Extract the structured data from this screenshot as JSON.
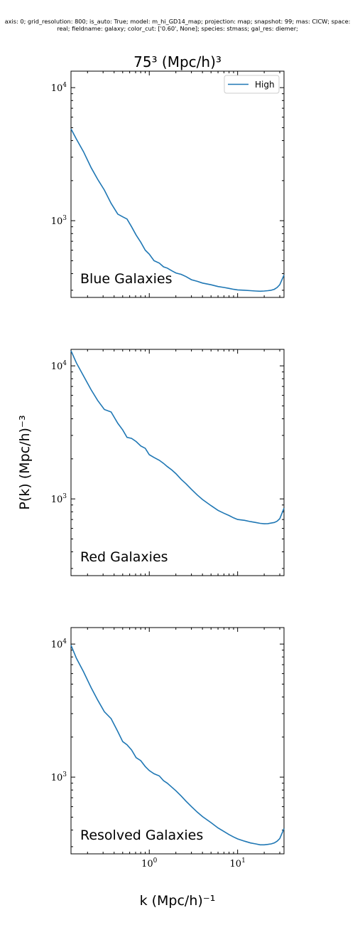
{
  "figure": {
    "header_line1": "axis: 0; grid_resolution: 800; is_auto: True; model: m_hi_GD14_map; projection: map; snapshot: 99; mas: CICW; space:",
    "header_line2": "real; fieldname: galaxy; color_cut: ['0.60', None]; species: stmass; gal_res: diemer;",
    "title": "75³ (Mpc/h)³",
    "ylabel": "P(k) (Mpc/h)⁻³",
    "xlabel": "k (Mpc/h)⁻¹",
    "legend": "High",
    "line_color": "#1f77b4"
  },
  "chart_data": [
    {
      "type": "line",
      "panel_label": "Blue Galaxies",
      "xscale": "log",
      "yscale": "log",
      "xlim": [
        0.13,
        33.5
      ],
      "ylim": [
        265,
        13300
      ],
      "ytick_labels": [
        "10^4",
        "10^3"
      ],
      "xtick_labels": [],
      "legend": "top-right",
      "series": [
        {
          "name": "High",
          "x": [
            0.13,
            0.15,
            0.18,
            0.22,
            0.26,
            0.31,
            0.37,
            0.44,
            0.5,
            0.56,
            0.63,
            0.71,
            0.8,
            0.9,
            1.0,
            1.13,
            1.3,
            1.45,
            1.6,
            1.8,
            2.0,
            2.3,
            2.6,
            3.0,
            3.5,
            4.0,
            5.0,
            6.0,
            7.0,
            8.0,
            9.0,
            10.0,
            12.0,
            14.0,
            16.0,
            18.0,
            20.0,
            22.0,
            24.0,
            26.0,
            28.0,
            30.0,
            33.5
          ],
          "y": [
            4900,
            4100,
            3300,
            2500,
            2050,
            1700,
            1350,
            1120,
            1070,
            1030,
            900,
            780,
            690,
            600,
            560,
            500,
            480,
            450,
            440,
            420,
            405,
            395,
            380,
            360,
            350,
            340,
            330,
            320,
            315,
            310,
            305,
            302,
            300,
            298,
            296,
            295,
            296,
            298,
            300,
            305,
            315,
            330,
            390
          ]
        }
      ]
    },
    {
      "type": "line",
      "panel_label": "Red Galaxies",
      "xscale": "log",
      "yscale": "log",
      "xlim": [
        0.13,
        33.5
      ],
      "ylim": [
        265,
        13300
      ],
      "ytick_labels": [
        "10^4",
        "10^3"
      ],
      "xtick_labels": [],
      "series": [
        {
          "x": [
            0.13,
            0.15,
            0.18,
            0.22,
            0.26,
            0.31,
            0.37,
            0.44,
            0.5,
            0.56,
            0.63,
            0.71,
            0.8,
            0.9,
            1.0,
            1.13,
            1.3,
            1.45,
            1.6,
            1.8,
            2.0,
            2.3,
            2.6,
            3.0,
            3.5,
            4.0,
            5.0,
            6.0,
            7.0,
            8.0,
            9.0,
            10.0,
            12.0,
            14.0,
            16.0,
            18.0,
            20.0,
            22.0,
            24.0,
            26.0,
            28.0,
            30.0,
            33.5
          ],
          "y": [
            13000,
            10500,
            8400,
            6600,
            5500,
            4700,
            4500,
            3700,
            3300,
            2900,
            2850,
            2700,
            2500,
            2400,
            2150,
            2050,
            1950,
            1850,
            1750,
            1650,
            1550,
            1400,
            1300,
            1180,
            1070,
            990,
            890,
            820,
            780,
            750,
            720,
            700,
            690,
            675,
            665,
            655,
            650,
            652,
            658,
            665,
            680,
            710,
            850
          ]
        }
      ]
    },
    {
      "type": "line",
      "panel_label": "Resolved Galaxies",
      "xscale": "log",
      "yscale": "log",
      "xlim": [
        0.13,
        33.5
      ],
      "ylim": [
        265,
        13300
      ],
      "ytick_labels": [
        "10^4",
        "10^3"
      ],
      "xtick_labels": [
        "10^0",
        "10^1"
      ],
      "series": [
        {
          "x": [
            0.13,
            0.15,
            0.18,
            0.22,
            0.26,
            0.31,
            0.37,
            0.44,
            0.5,
            0.56,
            0.63,
            0.71,
            0.8,
            0.9,
            1.0,
            1.13,
            1.3,
            1.45,
            1.6,
            1.8,
            2.0,
            2.3,
            2.6,
            3.0,
            3.5,
            4.0,
            5.0,
            6.0,
            7.0,
            8.0,
            9.0,
            10.0,
            12.0,
            14.0,
            16.0,
            18.0,
            20.0,
            22.0,
            24.0,
            26.0,
            28.0,
            30.0,
            33.5
          ],
          "y": [
            9800,
            7800,
            6200,
            4700,
            3800,
            3100,
            2750,
            2200,
            1850,
            1750,
            1600,
            1400,
            1330,
            1200,
            1120,
            1060,
            1020,
            940,
            900,
            840,
            790,
            720,
            660,
            600,
            545,
            505,
            455,
            415,
            390,
            370,
            355,
            343,
            330,
            320,
            315,
            310,
            310,
            312,
            315,
            320,
            330,
            345,
            410
          ]
        }
      ]
    }
  ]
}
